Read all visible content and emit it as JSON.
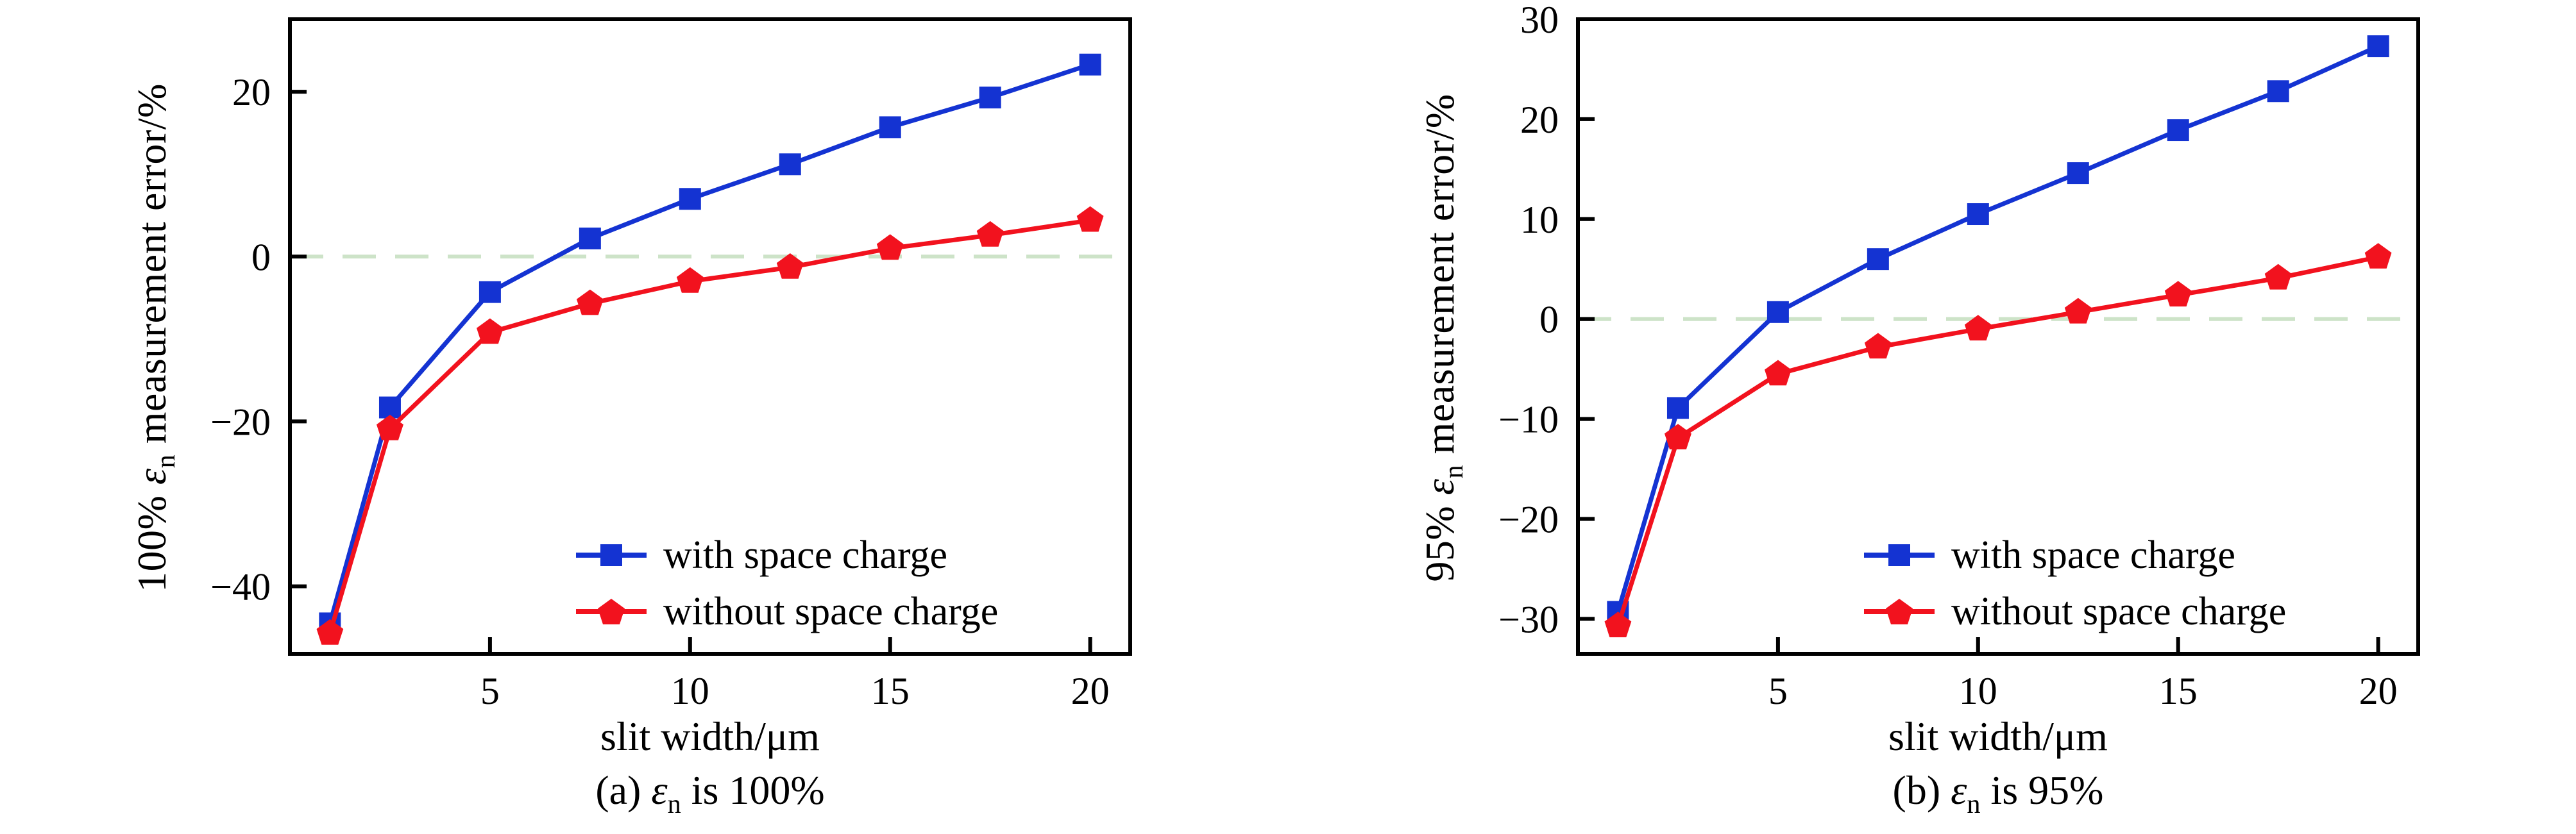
{
  "page": {
    "background": "#ffffff"
  },
  "colors": {
    "axis": "#000000",
    "text": "#000000",
    "zero_line": "#cde3c8",
    "with_space_charge": "#1433d2",
    "without_space_charge": "#f2121e"
  },
  "chart_data": [
    {
      "type": "line",
      "caption": {
        "prefix": "(a) ",
        "epsilon": "ε",
        "subscript": "n",
        "suffix": " is 100%"
      },
      "xlabel": "slit width/μm",
      "ylabel": {
        "prefix": "100% ",
        "epsilon": "ε",
        "subscript": "n",
        "suffix": " measurement error/%"
      },
      "x": [
        1,
        2.5,
        5,
        7.5,
        10,
        12.5,
        15,
        17.5,
        20
      ],
      "series": [
        {
          "name": "with space charge",
          "marker": "square",
          "color": "#1433d2",
          "values": [
            -44.5,
            -18.3,
            -4.3,
            2.2,
            7.0,
            11.2,
            15.7,
            19.3,
            23.3
          ]
        },
        {
          "name": "without space charge",
          "marker": "pentagon",
          "color": "#f2121e",
          "values": [
            -45.7,
            -20.9,
            -9.2,
            -5.7,
            -3.0,
            -1.3,
            1.0,
            2.6,
            4.4
          ]
        }
      ],
      "xlim": [
        0,
        21
      ],
      "ylim": [
        -48.2,
        28.8
      ],
      "xticks": [
        {
          "v": 5,
          "label": "5"
        },
        {
          "v": 10,
          "label": "10"
        },
        {
          "v": 15,
          "label": "15"
        },
        {
          "v": 20,
          "label": "20"
        }
      ],
      "yticks": [
        {
          "v": 20,
          "label": "20"
        },
        {
          "v": 0,
          "label": "0"
        },
        {
          "v": -20,
          "label": "−20"
        },
        {
          "v": -40,
          "label": "−40"
        }
      ],
      "zero_line": true,
      "grid": false,
      "legend_position": "lower right"
    },
    {
      "type": "line",
      "caption": {
        "prefix": "(b) ",
        "epsilon": "ε",
        "subscript": "n",
        "suffix": " is 95%"
      },
      "xlabel": "slit width/μm",
      "ylabel": {
        "prefix": "95% ",
        "epsilon": "ε",
        "subscript": "n",
        "suffix": " measurement error/%"
      },
      "x": [
        1,
        2.5,
        5,
        7.5,
        10,
        12.5,
        15,
        17.5,
        20
      ],
      "series": [
        {
          "name": "with space charge",
          "marker": "square",
          "color": "#1433d2",
          "values": [
            -29.3,
            -8.9,
            0.7,
            6.0,
            10.5,
            14.6,
            18.9,
            22.8,
            27.3
          ]
        },
        {
          "name": "without space charge",
          "marker": "pentagon",
          "color": "#f2121e",
          "values": [
            -30.7,
            -11.9,
            -5.5,
            -2.8,
            -1.0,
            0.7,
            2.4,
            4.1,
            6.2
          ]
        }
      ],
      "xlim": [
        0,
        21
      ],
      "ylim": [
        -33.5,
        30
      ],
      "xticks": [
        {
          "v": 5,
          "label": "5"
        },
        {
          "v": 10,
          "label": "10"
        },
        {
          "v": 15,
          "label": "15"
        },
        {
          "v": 20,
          "label": "20"
        }
      ],
      "yticks": [
        {
          "v": 30,
          "label": "30"
        },
        {
          "v": 20,
          "label": "20"
        },
        {
          "v": 10,
          "label": "10"
        },
        {
          "v": 0,
          "label": "0"
        },
        {
          "v": -10,
          "label": "−10"
        },
        {
          "v": -20,
          "label": "−20"
        },
        {
          "v": -30,
          "label": "−30"
        }
      ],
      "zero_line": true,
      "grid": false,
      "legend_position": "lower right"
    }
  ]
}
